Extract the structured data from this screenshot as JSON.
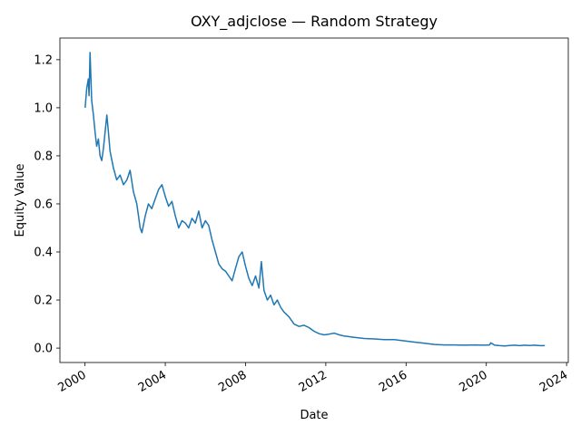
{
  "chart_data": {
    "type": "line",
    "title": "OXY_adjclose — Random Strategy",
    "xlabel": "Date",
    "ylabel": "Equity Value",
    "x_tick_labels": [
      "2000",
      "2004",
      "2008",
      "2012",
      "2016",
      "2020",
      "2024"
    ],
    "y_tick_labels": [
      "0.0",
      "0.2",
      "0.4",
      "0.6",
      "0.8",
      "1.0",
      "1.2"
    ],
    "xlim": [
      "1998-10-01",
      "2024-02-01"
    ],
    "ylim": [
      -0.06,
      1.29
    ],
    "grid": false,
    "series": [
      {
        "color": "#1f77b4",
        "x": [
          "2000-01-03",
          "2000-02-01",
          "2000-03-01",
          "2000-03-15",
          "2000-04-01",
          "2000-05-01",
          "2000-06-01",
          "2000-07-01",
          "2000-08-01",
          "2000-09-01",
          "2000-10-01",
          "2000-11-01",
          "2000-12-01",
          "2001-01-01",
          "2001-02-01",
          "2001-03-01",
          "2001-04-01",
          "2001-06-01",
          "2001-08-01",
          "2001-10-01",
          "2001-12-01",
          "2002-02-01",
          "2002-04-01",
          "2002-06-01",
          "2002-08-01",
          "2002-10-01",
          "2002-11-01",
          "2003-01-01",
          "2003-03-01",
          "2003-05-01",
          "2003-07-01",
          "2003-09-01",
          "2003-11-01",
          "2004-01-01",
          "2004-03-01",
          "2004-05-01",
          "2004-07-01",
          "2004-09-01",
          "2004-11-01",
          "2005-01-01",
          "2005-03-01",
          "2005-05-01",
          "2005-07-01",
          "2005-09-01",
          "2005-11-01",
          "2006-01-01",
          "2006-03-01",
          "2006-05-01",
          "2006-07-01",
          "2006-09-01",
          "2006-11-01",
          "2007-01-01",
          "2007-03-01",
          "2007-05-01",
          "2007-07-01",
          "2007-09-01",
          "2007-11-01",
          "2008-01-01",
          "2008-03-01",
          "2008-05-01",
          "2008-07-01",
          "2008-09-01",
          "2008-10-15",
          "2008-12-01",
          "2009-02-01",
          "2009-04-01",
          "2009-06-01",
          "2009-08-01",
          "2009-10-01",
          "2009-12-01",
          "2010-03-01",
          "2010-06-01",
          "2010-09-01",
          "2010-12-01",
          "2011-03-01",
          "2011-06-01",
          "2011-09-01",
          "2011-12-01",
          "2012-03-01",
          "2012-06-01",
          "2012-09-01",
          "2012-12-01",
          "2013-06-01",
          "2013-12-01",
          "2014-06-01",
          "2014-12-01",
          "2015-06-01",
          "2015-12-01",
          "2016-06-01",
          "2016-12-01",
          "2017-06-01",
          "2017-12-01",
          "2018-06-01",
          "2018-12-01",
          "2019-06-01",
          "2019-12-01",
          "2020-03-01",
          "2020-03-20",
          "2020-06-01",
          "2020-09-01",
          "2020-12-01",
          "2021-03-01",
          "2021-06-01",
          "2021-09-01",
          "2021-12-01",
          "2022-03-01",
          "2022-06-01",
          "2022-09-01",
          "2022-12-01"
        ],
        "y": [
          1.0,
          1.08,
          1.12,
          1.05,
          1.23,
          1.03,
          0.97,
          0.9,
          0.84,
          0.87,
          0.8,
          0.78,
          0.83,
          0.9,
          0.97,
          0.9,
          0.82,
          0.75,
          0.7,
          0.72,
          0.68,
          0.7,
          0.74,
          0.65,
          0.6,
          0.5,
          0.48,
          0.55,
          0.6,
          0.58,
          0.62,
          0.66,
          0.68,
          0.63,
          0.59,
          0.61,
          0.55,
          0.5,
          0.53,
          0.52,
          0.5,
          0.54,
          0.52,
          0.57,
          0.5,
          0.53,
          0.51,
          0.45,
          0.4,
          0.35,
          0.33,
          0.32,
          0.3,
          0.28,
          0.33,
          0.38,
          0.4,
          0.34,
          0.29,
          0.26,
          0.3,
          0.25,
          0.36,
          0.24,
          0.2,
          0.22,
          0.18,
          0.2,
          0.17,
          0.15,
          0.13,
          0.1,
          0.09,
          0.095,
          0.085,
          0.07,
          0.06,
          0.055,
          0.058,
          0.062,
          0.055,
          0.05,
          0.045,
          0.04,
          0.038,
          0.035,
          0.035,
          0.03,
          0.025,
          0.02,
          0.015,
          0.013,
          0.013,
          0.012,
          0.013,
          0.012,
          0.013,
          0.022,
          0.012,
          0.01,
          0.009,
          0.011,
          0.012,
          0.01,
          0.012,
          0.011,
          0.012,
          0.01,
          0.01
        ]
      }
    ]
  }
}
